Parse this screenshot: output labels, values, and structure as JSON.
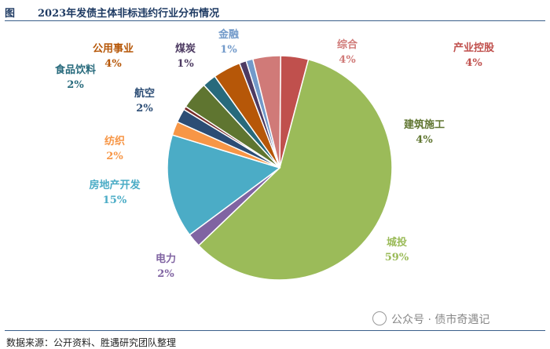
{
  "header": {
    "prefix": "图",
    "title": "2023年发债主体非标违约行业分布情况"
  },
  "source": "数据来源：公开资料、胜遇研究团队整理",
  "watermark": "公众号 · 债市奇遇记",
  "chart_data": {
    "type": "pie",
    "title": "2023年发债主体非标违约行业分布情况",
    "slices": [
      {
        "name": "产业控股",
        "value": 4,
        "label": "4%",
        "color": "#c0504d"
      },
      {
        "name": "城投",
        "value": 59,
        "label": "59%",
        "color": "#9bbb59"
      },
      {
        "name": "电力",
        "value": 2,
        "label": "2%",
        "color": "#8064a2"
      },
      {
        "name": "房地产开发",
        "value": 15,
        "label": "15%",
        "color": "#4bacc6"
      },
      {
        "name": "纺织",
        "value": 2,
        "label": "2%",
        "color": "#f79646"
      },
      {
        "name": "航空",
        "value": 2,
        "label": "2%",
        "color": "#2c4d75"
      },
      {
        "name": "",
        "value": 0.5,
        "label": "",
        "color": "#772c2a"
      },
      {
        "name": "建筑施工",
        "value": 4,
        "label": "4%",
        "color": "#5f7530"
      },
      {
        "name": "食品饮料",
        "value": 2,
        "label": "2%",
        "color": "#276a7c"
      },
      {
        "name": "公用事业",
        "value": 4,
        "label": "4%",
        "color": "#b65708"
      },
      {
        "name": "煤炭",
        "value": 1,
        "label": "1%",
        "color": "#4d3b62"
      },
      {
        "name": "金融",
        "value": 1,
        "label": "1%",
        "color": "#729aca"
      },
      {
        "name": "综合",
        "value": 4,
        "label": "4%",
        "color": "#d07a78"
      }
    ]
  }
}
